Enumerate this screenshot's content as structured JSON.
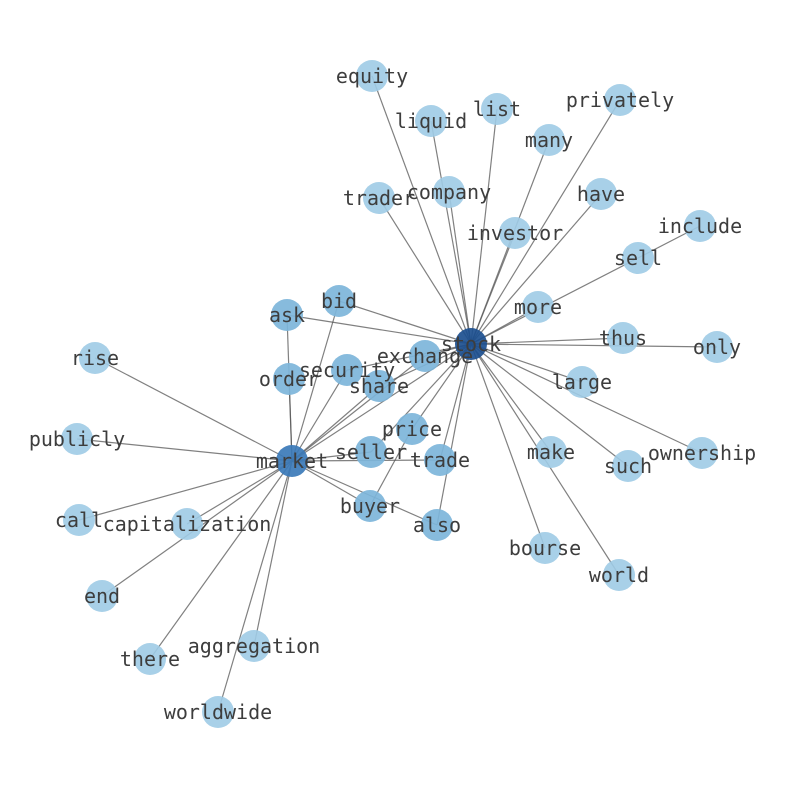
{
  "colors": {
    "hub_primary": "#1c4f8f",
    "hub_secondary": "#3b7ab8",
    "mid": "#7db5da",
    "outer": "#9fcbe5",
    "edge": "#555555",
    "label": "#3d3d3d"
  },
  "nodes": [
    {
      "id": "stock",
      "tier": "hub_primary"
    },
    {
      "id": "market",
      "tier": "hub_secondary"
    },
    {
      "id": "equity",
      "tier": "outer"
    },
    {
      "id": "liquid",
      "tier": "outer"
    },
    {
      "id": "list",
      "tier": "outer"
    },
    {
      "id": "privately",
      "tier": "outer"
    },
    {
      "id": "many",
      "tier": "outer"
    },
    {
      "id": "company",
      "tier": "outer"
    },
    {
      "id": "trader",
      "tier": "outer"
    },
    {
      "id": "have",
      "tier": "outer"
    },
    {
      "id": "investor",
      "tier": "outer"
    },
    {
      "id": "include",
      "tier": "outer"
    },
    {
      "id": "sell",
      "tier": "outer"
    },
    {
      "id": "more",
      "tier": "outer"
    },
    {
      "id": "thus",
      "tier": "outer"
    },
    {
      "id": "only",
      "tier": "outer"
    },
    {
      "id": "large",
      "tier": "outer"
    },
    {
      "id": "ownership",
      "tier": "outer"
    },
    {
      "id": "such",
      "tier": "outer"
    },
    {
      "id": "make",
      "tier": "outer"
    },
    {
      "id": "world",
      "tier": "outer"
    },
    {
      "id": "bourse",
      "tier": "outer"
    },
    {
      "id": "also",
      "tier": "mid"
    },
    {
      "id": "trade",
      "tier": "mid"
    },
    {
      "id": "seller",
      "tier": "mid"
    },
    {
      "id": "price",
      "tier": "mid"
    },
    {
      "id": "share",
      "tier": "mid"
    },
    {
      "id": "security",
      "tier": "mid"
    },
    {
      "id": "exchange",
      "tier": "mid"
    },
    {
      "id": "order",
      "tier": "mid"
    },
    {
      "id": "bid",
      "tier": "mid"
    },
    {
      "id": "ask",
      "tier": "mid"
    },
    {
      "id": "buyer",
      "tier": "mid"
    },
    {
      "id": "rise",
      "tier": "outer"
    },
    {
      "id": "publicly",
      "tier": "outer"
    },
    {
      "id": "call",
      "tier": "outer"
    },
    {
      "id": "capitalization",
      "tier": "outer"
    },
    {
      "id": "end",
      "tier": "outer"
    },
    {
      "id": "there",
      "tier": "outer"
    },
    {
      "id": "aggregation",
      "tier": "outer"
    },
    {
      "id": "worldwide",
      "tier": "outer"
    }
  ],
  "edges": [
    [
      "stock",
      "market"
    ],
    [
      "stock",
      "equity"
    ],
    [
      "stock",
      "liquid"
    ],
    [
      "stock",
      "list"
    ],
    [
      "stock",
      "privately"
    ],
    [
      "stock",
      "many"
    ],
    [
      "stock",
      "company"
    ],
    [
      "stock",
      "trader"
    ],
    [
      "stock",
      "have"
    ],
    [
      "stock",
      "investor"
    ],
    [
      "stock",
      "sell"
    ],
    [
      "sell",
      "include"
    ],
    [
      "stock",
      "more"
    ],
    [
      "stock",
      "thus"
    ],
    [
      "stock",
      "only"
    ],
    [
      "stock",
      "large"
    ],
    [
      "stock",
      "ownership"
    ],
    [
      "stock",
      "such"
    ],
    [
      "stock",
      "make"
    ],
    [
      "stock",
      "world"
    ],
    [
      "stock",
      "bourse"
    ],
    [
      "stock",
      "also"
    ],
    [
      "stock",
      "trade"
    ],
    [
      "stock",
      "seller"
    ],
    [
      "stock",
      "price"
    ],
    [
      "stock",
      "share"
    ],
    [
      "stock",
      "exchange"
    ],
    [
      "stock",
      "security"
    ],
    [
      "stock",
      "bid"
    ],
    [
      "stock",
      "ask"
    ],
    [
      "market",
      "rise"
    ],
    [
      "market",
      "publicly"
    ],
    [
      "market",
      "call"
    ],
    [
      "market",
      "capitalization"
    ],
    [
      "market",
      "end"
    ],
    [
      "market",
      "there"
    ],
    [
      "market",
      "aggregation"
    ],
    [
      "market",
      "worldwide"
    ],
    [
      "market",
      "ask"
    ],
    [
      "market",
      "bid"
    ],
    [
      "market",
      "order"
    ],
    [
      "market",
      "security"
    ],
    [
      "market",
      "share"
    ],
    [
      "market",
      "exchange"
    ],
    [
      "market",
      "seller"
    ],
    [
      "market",
      "trade"
    ],
    [
      "market",
      "buyer"
    ],
    [
      "market",
      "also"
    ],
    [
      "buyer",
      "price"
    ]
  ]
}
